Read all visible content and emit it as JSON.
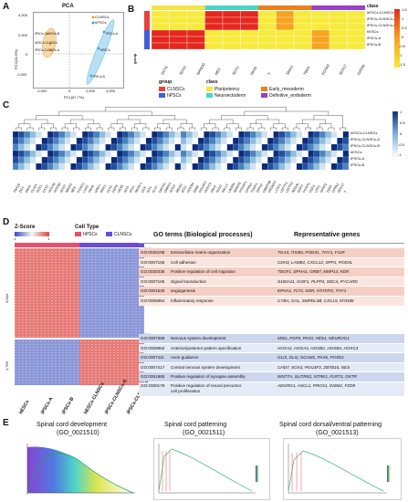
{
  "panels": {
    "A": "A",
    "B": "B",
    "C": "C",
    "D": "D",
    "E": "E"
  },
  "panelA": {
    "title": "PCA",
    "xlabel": "PC1(67.7%)",
    "ylabel": "PC2(28.3%)",
    "legend": [
      "CLNSCs",
      "hPSCs"
    ],
    "xticks": [
      "-2,000",
      "0",
      "2,000",
      "4,000"
    ],
    "yticks": [
      "4,000",
      "2,000",
      "0",
      "-2,000"
    ],
    "point_labels": [
      "iPSCs-CLNSCs-B",
      "hESCs-CLNSCs",
      "iPSCs-CLNSCs-A",
      "iPSCs-A",
      "hESCs",
      "iPSCs-B"
    ]
  },
  "panelB": {
    "class_title": "class",
    "columns": [
      "OCT4",
      "SOX2",
      "NANOG",
      "NES",
      "SOX1",
      "PAX6",
      "T",
      "SNAI1",
      "TBX6",
      "FOXA2",
      "SOX17",
      "GATA6"
    ],
    "rows": [
      "hESCs-CLNSCs",
      "iPSCs-CLNSCs-A",
      "iPSCs-CLNSCs-B",
      "hESCs",
      "iPSCs-A",
      "iPSCs-B"
    ],
    "group_label": "group",
    "scale_ticks": [
      "1.5",
      "1",
      "0.5",
      "0",
      "-0.5",
      "-1",
      "-1.5"
    ],
    "legend_group_title": "group",
    "legend_groups": [
      "CLNSCs",
      "hPSCs"
    ],
    "legend_class_title": "class",
    "legend_classes": [
      "Pluripotency",
      "Neuroectoderm",
      "Early_mesoderm",
      "Definitive_endoderm"
    ],
    "colors": {
      "pluri": "#f4e542",
      "neuro": "#4ad6c4",
      "meso": "#f07e1a",
      "endo": "#9b3ec8",
      "clnsc": "#e8413a",
      "hpsc": "#3d5fd6"
    }
  },
  "panelC": {
    "rows": [
      "hESCs-CLNSCs",
      "iPSCs-CLNSCs-A",
      "iPSCs-CLNSCs-B",
      "hESCs",
      "iPSCs-A",
      "iPSCs-B"
    ],
    "genes": [
      "TBX18",
      "ZIC1",
      "PAX3",
      "OLIG3",
      "SOX1",
      "OTX2",
      "HOXA2",
      "HOXB2",
      "SOX3",
      "NR2F2",
      "NES",
      "FOXG1",
      "LHX2",
      "PAX6",
      "WNT1",
      "MSX1",
      "DLK1",
      "FGF8",
      "HES5",
      "SIX3",
      "IRX3",
      "NKX6-1",
      "DCX",
      "SIX1",
      "GLI3",
      "DACH1",
      "DMRT3",
      "SOX9",
      "MEIS2",
      "IRX2",
      "HOXB4",
      "ZEB2",
      "POU3F2",
      "HOXC4",
      "PAX2",
      "SOX2",
      "SALL4",
      "LIN28A",
      "NANOG",
      "POU5F1",
      "DPPA4",
      "TDGF1",
      "ZFP42",
      "DNMT3B",
      "PRDM14",
      "L1TD1",
      "LEFTY1",
      "LEFTY2",
      "NODAL",
      "GDF3",
      "FOXH1",
      "FGF4",
      "UTF1",
      "SFRP2",
      "TERT",
      "DPPA2",
      "SOX17",
      "T"
    ],
    "scale_ticks": [
      "1",
      "0.5",
      "0",
      "-0.5",
      "-1"
    ]
  },
  "panelD": {
    "zscore_label": "Z-Score",
    "celltype_label": "Cell Type",
    "celltype_legend": [
      "hPSCs",
      "CLNSCs"
    ],
    "scale_min": "-1",
    "scale_max": "1",
    "cluster_counts": [
      "3,644",
      "1,763"
    ],
    "columns": [
      "hESCs",
      "iPSCs-A",
      "iPSCs-B",
      "hESCs-CLNSCs",
      "iPSCs-CLNSCs-A",
      "iPSCs-CLNSCs-B"
    ],
    "go_header": "GO terms (Biological processes)",
    "genes_header": "Representative genes",
    "up_rows": [
      {
        "id": "GO:0030198",
        "term": "Extracellular matrix organization",
        "genes": "TGA3, ITGB5, PODXL, THY1, F11R"
      },
      {
        "id": "GO:0007155",
        "term": "Cell adhesion",
        "genes": "CDH3, LAMB1, CXCL12, SPP1, PODXL"
      },
      {
        "id": "GO:0030335",
        "term": "Positive regulation of cell migration",
        "genes": "TDGF1, EPHA1, GRB7, MMP14, KDR"
      },
      {
        "id": "GO:0007165",
        "term": "Signal transduction",
        "genes": "S100A11, IGSF1, PLPP3, SDC4, PYCARD"
      },
      {
        "id": "GO:0001525",
        "term": "angiogenesis",
        "genes": "EPHA1, FLT1, KDR, HTATIP2, THY1"
      },
      {
        "id": "GO:0006954",
        "term": "Inflammatory response",
        "genes": "CYBA, GAL, SMPDL3B, CXCL5, MYD88"
      }
    ],
    "down_rows": [
      {
        "id": "GO:0007399",
        "term": "Nervous system development",
        "genes": "MSI1, FGF5, PAX3, HES1, NEUROG1"
      },
      {
        "id": "GO:0009952",
        "term": "Anterior/posterior pattern specification",
        "genes": "HOXA2, HOXA3, HOXB2, HOXB4, HOXC4"
      },
      {
        "id": "GO:0007411",
        "term": "Axon guidance",
        "genes": "GLI3, GLI2, NCAM1, PAX6, FOXD1"
      },
      {
        "id": "GO:0007417",
        "term": "Central nervous system development",
        "genes": "CHD7, SOX3, POU3F3, ZBTB16, NES"
      },
      {
        "id": "GO:0051965",
        "term": "Positive regulation of synapse assembly",
        "genes": "WNT7A, SLITRK2, NTRK1, FLRT3, OXTR"
      },
      {
        "id": "GO:2000179",
        "term": "Positive regulation of neural precursor",
        "term2": "cell proliferation",
        "genes": "ADGRG1, ASCL1, PROX1, INSM1, FZD9"
      }
    ]
  },
  "panelE": {
    "plots": [
      {
        "title": "Spinal cord development",
        "id": "(GO_0021510)"
      },
      {
        "title": "Spinal cord patterning",
        "id": "(GO_0021511)"
      },
      {
        "title": "Spinal cord dorsal/ventral patterning",
        "id": "(GO_0021513)"
      }
    ]
  }
}
